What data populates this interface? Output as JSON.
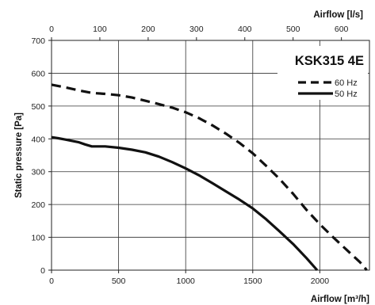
{
  "chart_data": {
    "type": "line",
    "title": "KSK315 4E",
    "xlabel": "Airflow [m³/h]",
    "x2label": "Airflow [l/s]",
    "ylabel": "Static pressure [Pa]",
    "xlim": [
      0,
      2370
    ],
    "ylim": [
      0,
      700
    ],
    "x2lim": [
      0,
      658
    ],
    "xticks": [
      0,
      500,
      1000,
      1500,
      2000
    ],
    "x2ticks": [
      0,
      100,
      200,
      300,
      400,
      500,
      600
    ],
    "yticks": [
      0,
      100,
      200,
      300,
      400,
      500,
      600,
      700
    ],
    "grid": true,
    "legend_position": "top-right",
    "series": [
      {
        "name": "60 Hz",
        "style": "dashed",
        "color": "#111111",
        "x": [
          0,
          100,
          200,
          300,
          400,
          500,
          600,
          700,
          800,
          900,
          1000,
          1100,
          1200,
          1300,
          1400,
          1500,
          1600,
          1700,
          1800,
          1900,
          2000,
          2100,
          2200,
          2300,
          2350
        ],
        "y": [
          565,
          557,
          548,
          540,
          537,
          533,
          526,
          516,
          506,
          495,
          481,
          463,
          441,
          416,
          388,
          356,
          318,
          278,
          233,
          184,
          140,
          100,
          62,
          24,
          0
        ]
      },
      {
        "name": "50 Hz",
        "style": "solid",
        "color": "#111111",
        "x": [
          0,
          50,
          100,
          200,
          250,
          300,
          400,
          500,
          600,
          700,
          800,
          900,
          1000,
          1100,
          1200,
          1300,
          1400,
          1500,
          1600,
          1700,
          1800,
          1900,
          1980
        ],
        "y": [
          405,
          402,
          398,
          390,
          383,
          377,
          377,
          373,
          367,
          359,
          346,
          329,
          310,
          289,
          265,
          240,
          215,
          188,
          155,
          118,
          80,
          37,
          0
        ]
      }
    ]
  }
}
